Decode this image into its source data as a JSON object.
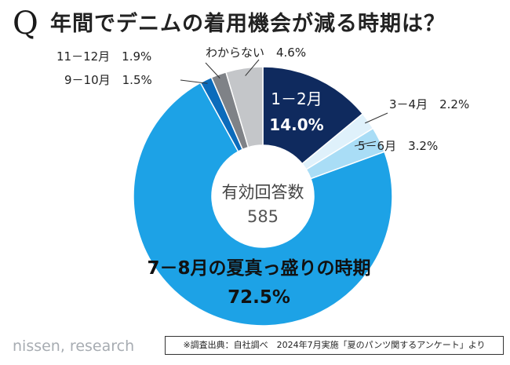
{
  "header": {
    "q_mark": "Q",
    "title": "年間でデニムの着用機会が減る時期は？"
  },
  "footer": {
    "logo": "nissen, research",
    "source": "※調査出典：自社調べ　2024年7月実施「夏のパンツ関するアンケート」より"
  },
  "chart_data": {
    "type": "pie",
    "donut": true,
    "center_label": "有効回答数",
    "center_value": "585",
    "slices": [
      {
        "label": "1－2月",
        "value": 14.0,
        "value_text": "14.0%",
        "color": "#0f2a5e"
      },
      {
        "label": "3－4月",
        "value": 2.2,
        "value_text": "2.2%",
        "color": "#dff1fb"
      },
      {
        "label": "5－6月",
        "value": 3.2,
        "value_text": "3.2%",
        "color": "#a9ddf6"
      },
      {
        "label": "7－8月の夏真っ盛りの時期",
        "value": 72.5,
        "value_text": "72.5%",
        "color": "#1da2e6"
      },
      {
        "label": "9－10月",
        "value": 1.5,
        "value_text": "1.5%",
        "color": "#0b6bbb"
      },
      {
        "label": "11－12月",
        "value": 1.9,
        "value_text": "1.9%",
        "color": "#7f8287"
      },
      {
        "label": "わからない",
        "value": 4.6,
        "value_text": "4.6%",
        "color": "#c4c6c9"
      }
    ]
  }
}
